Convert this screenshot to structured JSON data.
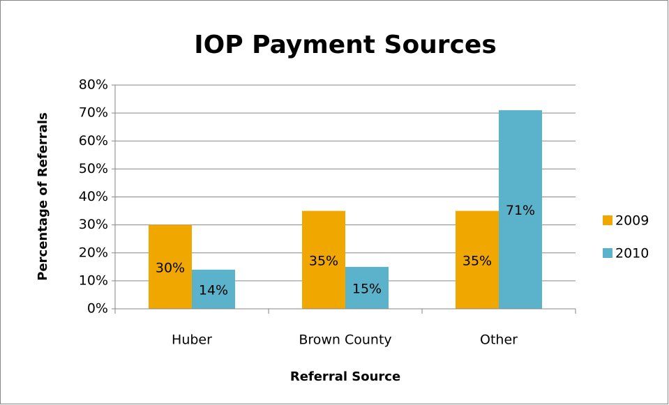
{
  "chart_data": {
    "type": "bar",
    "title": "IOP Payment Sources",
    "x_label": "Referral Source",
    "y_label": "Percentage of Referrals",
    "categories": [
      "Huber",
      "Brown County",
      "Other"
    ],
    "series": [
      {
        "name": "2009",
        "color": "#f0a800",
        "values": [
          30,
          35,
          35
        ],
        "value_labels": [
          "30%",
          "35%",
          "35%"
        ]
      },
      {
        "name": "2010",
        "color": "#5bb3cb",
        "values": [
          14,
          15,
          71
        ],
        "value_labels": [
          "14%",
          "15%",
          "71%"
        ]
      }
    ],
    "ylim": [
      0,
      80
    ],
    "yticks": [
      {
        "value": 0,
        "label": "0%"
      },
      {
        "value": 10,
        "label": "10%"
      },
      {
        "value": 20,
        "label": "20%"
      },
      {
        "value": 30,
        "label": "30%"
      },
      {
        "value": 40,
        "label": "40%"
      },
      {
        "value": 50,
        "label": "50%"
      },
      {
        "value": 60,
        "label": "60%"
      },
      {
        "value": 70,
        "label": "70%"
      },
      {
        "value": 80,
        "label": "80%"
      }
    ],
    "grid": true,
    "legend": "right"
  }
}
